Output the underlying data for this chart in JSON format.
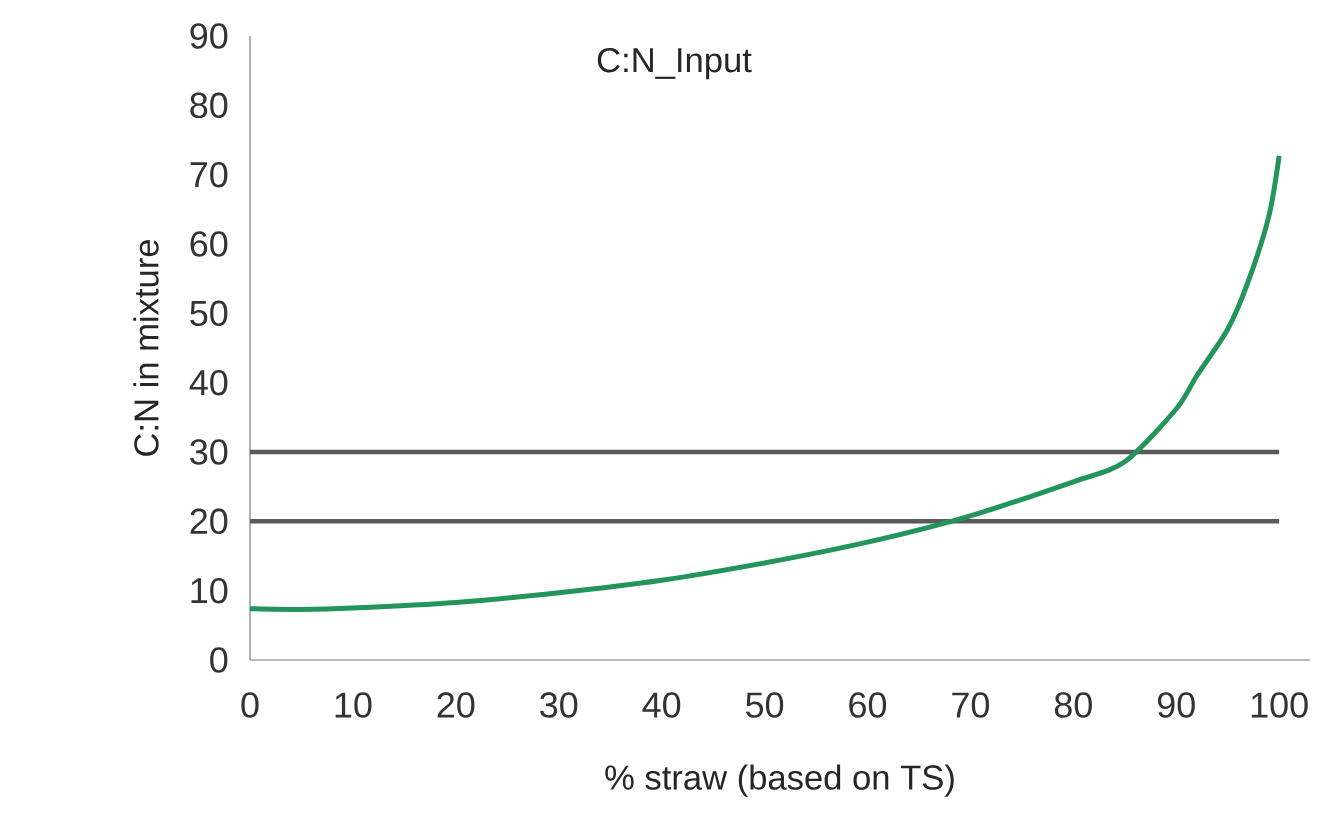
{
  "chart_data": {
    "type": "line",
    "title": "C:N_Input",
    "xlabel": "% straw (based on TS)",
    "ylabel": "C:N in mixture",
    "xlim": [
      0,
      103
    ],
    "xticks": [
      0,
      10,
      20,
      30,
      40,
      50,
      60,
      70,
      80,
      90,
      100
    ],
    "ylim": [
      0,
      90
    ],
    "yticks": [
      0,
      10,
      20,
      30,
      40,
      50,
      60,
      70,
      80,
      90
    ],
    "marker": "none",
    "line_style": "solid",
    "x": [
      0,
      5,
      10,
      20,
      30,
      40,
      50,
      60,
      70,
      80,
      85,
      90,
      92,
      95,
      97,
      99,
      100
    ],
    "series": [
      {
        "color": "#23955a",
        "values": [
          7.4,
          7.3,
          7.5,
          8.3,
          9.7,
          11.5,
          14.0,
          17.0,
          20.8,
          25.7,
          28.6,
          36.2,
          41,
          47.7,
          54.6,
          64,
          72.7
        ]
      }
    ],
    "ref_lines": [
      {
        "axis": "y",
        "value": 30,
        "color": "#5a5a5a"
      },
      {
        "axis": "y",
        "value": 20,
        "color": "#5a5a5a"
      }
    ]
  }
}
